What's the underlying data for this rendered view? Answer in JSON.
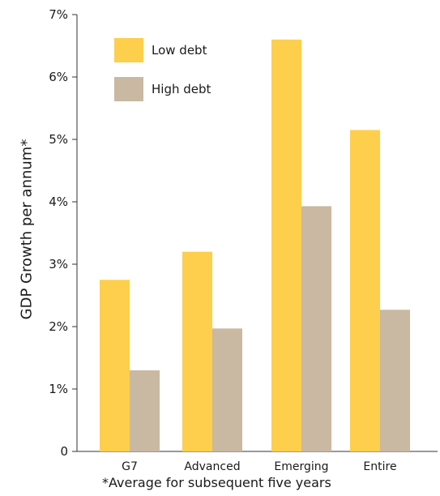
{
  "chart_data": {
    "type": "bar",
    "categories": [
      "G7",
      "Advanced",
      "Emerging",
      "Entire"
    ],
    "series": [
      {
        "name": "Low debt",
        "color": "#FDCF4C",
        "values": [
          2.75,
          3.2,
          6.6,
          5.15
        ]
      },
      {
        "name": "High debt",
        "color": "#C9B9A2",
        "values": [
          1.3,
          1.97,
          3.93,
          2.27
        ]
      }
    ],
    "ylabel": "GDP Growth per annum*",
    "xlabel": "",
    "ylim": [
      0,
      7
    ],
    "yticks": [
      0,
      1,
      2,
      3,
      4,
      5,
      6,
      7
    ],
    "ytick_labels": [
      "0",
      "1%",
      "2%",
      "3%",
      "4%",
      "5%",
      "6%",
      "7%"
    ],
    "grid": false,
    "legend_position": "top-left",
    "footnote": "*Average for subsequent five years"
  }
}
